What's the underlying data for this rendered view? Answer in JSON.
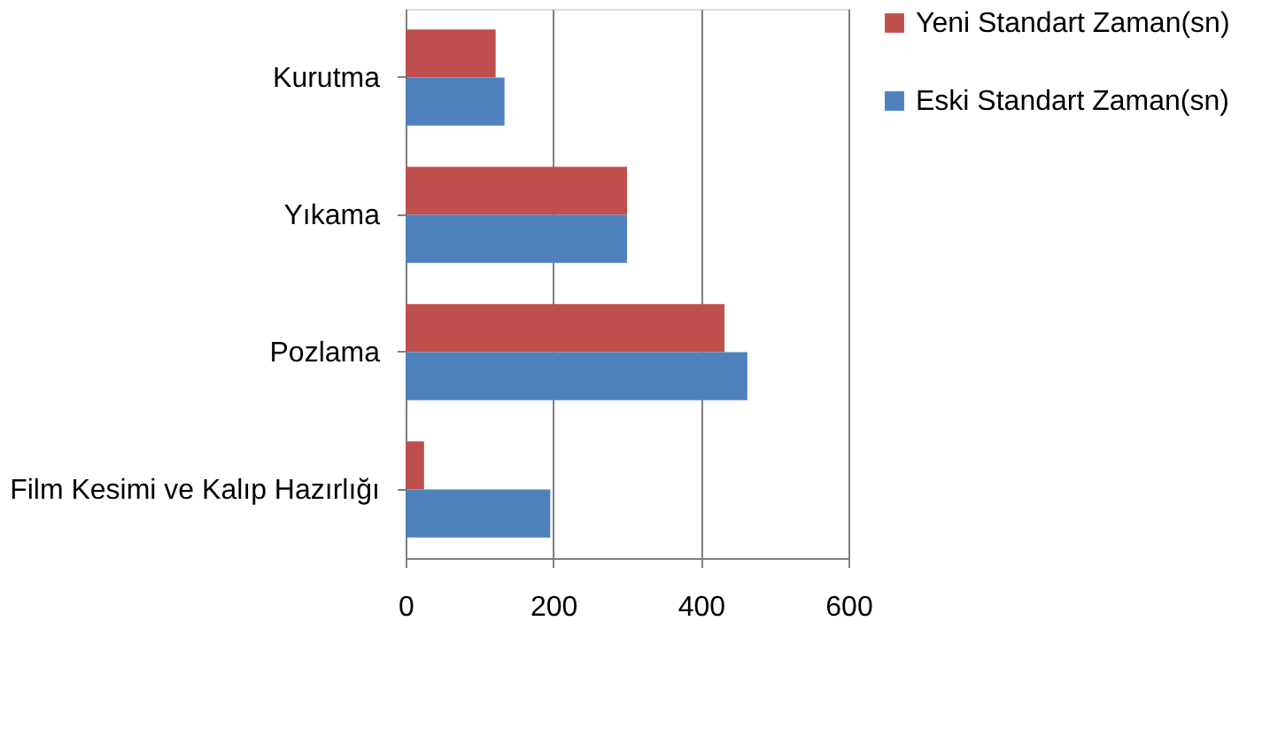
{
  "chart_data": {
    "type": "bar",
    "orientation": "horizontal",
    "categories": [
      "Kurutma",
      "Yıkama",
      "Pozlama",
      "Film Kesimi ve Kalıp Hazırlığı"
    ],
    "series": [
      {
        "name": "Yeni Standart Zaman(sn)",
        "color": "#c0504d",
        "values": [
          122,
          300,
          432,
          25
        ]
      },
      {
        "name": "Eski Standart Zaman(sn)",
        "color": "#4f81bd",
        "values": [
          134,
          300,
          463,
          196
        ]
      }
    ],
    "xlim": [
      0,
      600
    ],
    "xticks": [
      0,
      200,
      400,
      600
    ],
    "grid": "x",
    "legend": "right"
  }
}
